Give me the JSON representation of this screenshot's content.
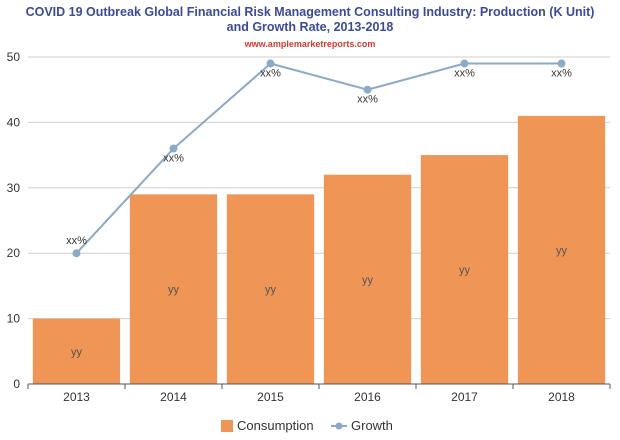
{
  "chart_data": {
    "type": "bar",
    "title_line1": "COVID 19 Outbreak Global Financial Risk Management Consulting Industry: Production (K Unit)",
    "title_line2": "and Growth Rate, 2013-2018",
    "source": "www.amplemarketreports.com",
    "categories": [
      "2013",
      "2014",
      "2015",
      "2016",
      "2017",
      "2018"
    ],
    "ylim": [
      0,
      50
    ],
    "yticks": [
      0,
      10,
      20,
      30,
      40,
      50
    ],
    "grid": true,
    "legend_position": "bottom",
    "series": [
      {
        "name": "Consumption",
        "type": "bar",
        "color": "#ef9555",
        "values": [
          10,
          29,
          29,
          32,
          35,
          41
        ],
        "labels": [
          "yy",
          "yy",
          "yy",
          "yy",
          "yy",
          "yy"
        ]
      },
      {
        "name": "Growth",
        "type": "line",
        "color": "#8aaac8",
        "values": [
          20,
          36,
          49,
          45,
          49,
          49
        ],
        "labels": [
          "xx%",
          "xx%",
          "xx%",
          "xx%",
          "xx%",
          "xx%"
        ]
      }
    ]
  }
}
